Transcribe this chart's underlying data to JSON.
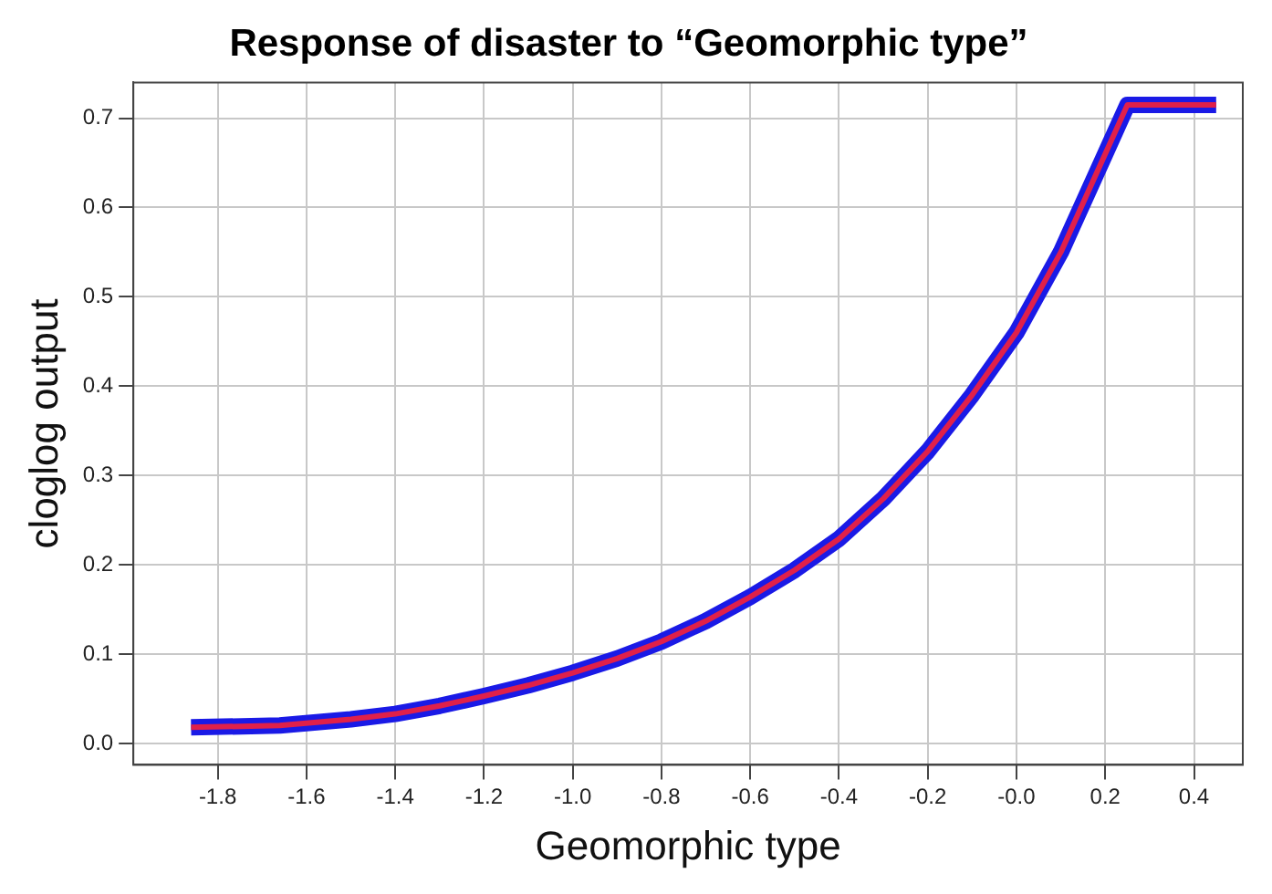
{
  "chart_data": {
    "type": "line",
    "title": "Response of disaster to “Geomorphic type”",
    "xlabel": "Geomorphic type",
    "ylabel": "cloglog output",
    "x": [
      -1.86,
      -1.66,
      -1.5,
      -1.4,
      -1.3,
      -1.2,
      -1.1,
      -1.0,
      -0.9,
      -0.8,
      -0.7,
      -0.6,
      -0.5,
      -0.4,
      -0.3,
      -0.2,
      -0.1,
      0.0,
      0.1,
      0.2,
      0.25,
      0.45
    ],
    "series": [
      {
        "color": "#1a1ae6",
        "values": [
          0.018,
          0.02,
          0.027,
          0.033,
          0.042,
          0.053,
          0.065,
          0.079,
          0.095,
          0.114,
          0.137,
          0.164,
          0.194,
          0.229,
          0.274,
          0.327,
          0.39,
          0.46,
          0.55,
          0.66,
          0.715,
          0.715
        ]
      },
      {
        "color": "#e0204a",
        "values": [
          0.018,
          0.02,
          0.027,
          0.033,
          0.042,
          0.053,
          0.065,
          0.079,
          0.095,
          0.114,
          0.137,
          0.164,
          0.194,
          0.229,
          0.274,
          0.327,
          0.39,
          0.46,
          0.55,
          0.66,
          0.715,
          0.715
        ]
      }
    ],
    "xlim": [
      -1.99,
      0.51
    ],
    "ylim": [
      -0.024,
      0.74
    ],
    "xticks": [
      {
        "value": -1.8,
        "label": "-1.8"
      },
      {
        "value": -1.6,
        "label": "-1.6"
      },
      {
        "value": -1.4,
        "label": "-1.4"
      },
      {
        "value": -1.2,
        "label": "-1.2"
      },
      {
        "value": -1.0,
        "label": "-1.0"
      },
      {
        "value": -0.8,
        "label": "-0.8"
      },
      {
        "value": -0.6,
        "label": "-0.6"
      },
      {
        "value": -0.4,
        "label": "-0.4"
      },
      {
        "value": -0.2,
        "label": "-0.2"
      },
      {
        "value": 0.0,
        "label": "-0.0"
      },
      {
        "value": 0.2,
        "label": "0.2"
      },
      {
        "value": 0.4,
        "label": "0.4"
      }
    ],
    "yticks": [
      {
        "value": 0.0,
        "label": "0.0"
      },
      {
        "value": 0.1,
        "label": "0.1"
      },
      {
        "value": 0.2,
        "label": "0.2"
      },
      {
        "value": 0.3,
        "label": "0.3"
      },
      {
        "value": 0.4,
        "label": "0.4"
      },
      {
        "value": 0.5,
        "label": "0.5"
      },
      {
        "value": 0.6,
        "label": "0.6"
      },
      {
        "value": 0.7,
        "label": "0.7"
      }
    ],
    "grid": true
  }
}
